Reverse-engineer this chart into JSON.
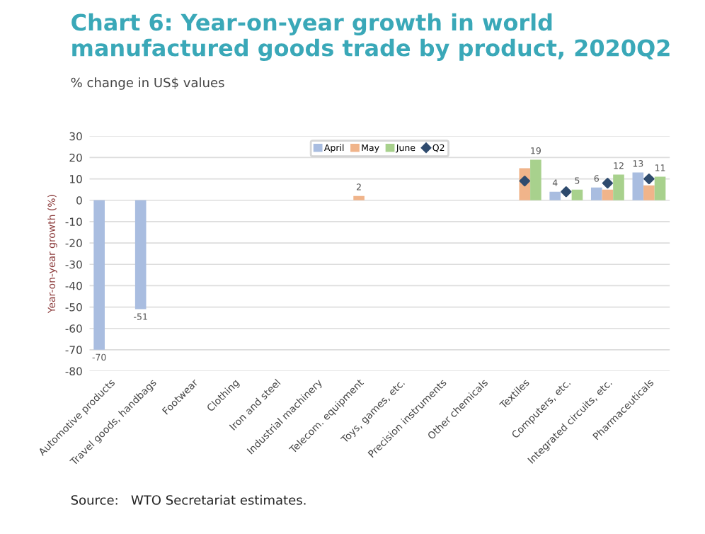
{
  "chart_data": {
    "type": "bar",
    "title": "Chart 6: Year-on-year growth in world manufactured goods trade by product, 2020Q2",
    "subtitle": "% change in US$ values",
    "ylabel": "Year-on-year growth (%)",
    "categories": [
      "Automotive products",
      "Travel goods, handbags",
      "Footwear",
      "Clothing",
      "Iron and steel",
      "Industrial machinery",
      "Telecom. equipment",
      "Toys, games, etc.",
      "Precision instruments",
      "Other chemicals",
      "Textiles",
      "Computers, etc.",
      "Integrated circuits, etc.",
      "Pharmaceuticals"
    ],
    "series": [
      {
        "name": "April",
        "color": "#a9bde0",
        "values": [
          -70,
          -51,
          null,
          null,
          null,
          null,
          null,
          null,
          null,
          null,
          null,
          4,
          6,
          13
        ],
        "value_labels": [
          "-70",
          "-51",
          null,
          null,
          null,
          null,
          null,
          null,
          null,
          null,
          null,
          "4",
          "6",
          "13"
        ]
      },
      {
        "name": "May",
        "color": "#f0b48a",
        "values": [
          null,
          null,
          null,
          null,
          null,
          null,
          2,
          null,
          null,
          null,
          15,
          null,
          5,
          7
        ],
        "value_labels": [
          null,
          null,
          null,
          null,
          null,
          null,
          "2",
          null,
          null,
          null,
          null,
          null,
          null,
          null
        ]
      },
      {
        "name": "June",
        "color": "#a8d18d",
        "values": [
          null,
          null,
          null,
          null,
          null,
          null,
          null,
          null,
          null,
          null,
          19,
          5,
          12,
          11
        ],
        "value_labels": [
          null,
          null,
          null,
          null,
          null,
          null,
          null,
          null,
          null,
          null,
          "19",
          "5",
          "12",
          "11"
        ]
      },
      {
        "name": "Q2",
        "type": "scatter",
        "color": "#2f4b6e",
        "marker": "diamond",
        "x": [
          "Textiles",
          "Computers, etc.",
          "Integrated circuits, etc.",
          "Pharmaceuticals"
        ],
        "values": [
          9,
          4,
          8,
          10
        ]
      }
    ],
    "ylim": [
      -80,
      30
    ],
    "yticks": [
      -80,
      -70,
      -60,
      -50,
      -40,
      -30,
      -20,
      -10,
      0,
      10,
      20,
      30
    ],
    "grid": "y",
    "legend": "top",
    "annotations": [
      "Source:   WTO Secretariat estimates."
    ]
  }
}
